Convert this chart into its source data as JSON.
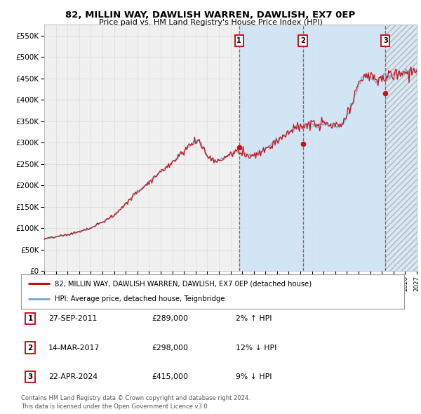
{
  "title": "82, MILLIN WAY, DAWLISH WARREN, DAWLISH, EX7 0EP",
  "subtitle": "Price paid vs. HM Land Registry's House Price Index (HPI)",
  "ytick_values": [
    0,
    50000,
    100000,
    150000,
    200000,
    250000,
    300000,
    350000,
    400000,
    450000,
    500000,
    550000
  ],
  "ylim": [
    0,
    575000
  ],
  "x_start_year": 1995,
  "x_end_year": 2027,
  "hpi_color": "#7aadd4",
  "price_color": "#cc1111",
  "background_color": "#ffffff",
  "plot_bg_color": "#f0f0f0",
  "grid_color": "#dddddd",
  "shade_color": "#cce4f7",
  "hatch_color": "#aaaaaa",
  "sales": [
    {
      "date": "27-SEP-2011",
      "price": 289000,
      "label": "1",
      "hpi_diff": "2% ↑ HPI",
      "x": 2011.74
    },
    {
      "date": "14-MAR-2017",
      "price": 298000,
      "label": "2",
      "hpi_diff": "12% ↓ HPI",
      "x": 2017.21
    },
    {
      "date": "22-APR-2024",
      "price": 415000,
      "label": "3",
      "hpi_diff": "9% ↓ HPI",
      "x": 2024.31
    }
  ],
  "footnote": "Contains HM Land Registry data © Crown copyright and database right 2024.\nThis data is licensed under the Open Government Licence v3.0.",
  "legend_line1": "82, MILLIN WAY, DAWLISH WARREN, DAWLISH, EX7 0EP (detached house)",
  "legend_line2": "HPI: Average price, detached house, Teignbridge"
}
